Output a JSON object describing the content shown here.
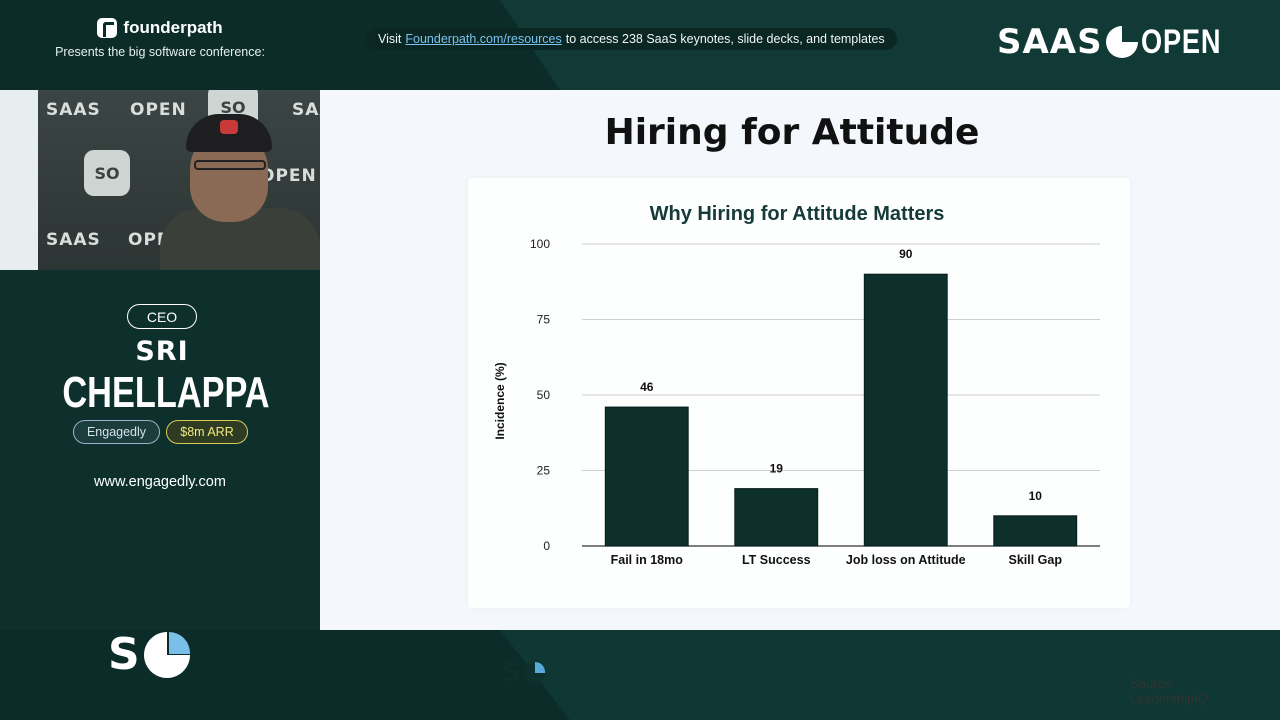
{
  "header": {
    "brand_name": "founderpath",
    "brand_subtitle": "Presents the big software conference:",
    "banner_prefix": "Visit",
    "banner_link": "Founderpath.com/resources",
    "banner_suffix": "to access 238 SaaS keynotes, slide decks, and templates",
    "event_logo_left": "SAAS",
    "event_logo_right": "OPEN"
  },
  "video": {
    "backdrop_left": "SAAS",
    "backdrop_right": "OPEN",
    "backdrop_tile": "SO"
  },
  "speaker": {
    "role": "CEO",
    "first_name": "SRI",
    "last_name": "CHELLAPPA",
    "company": "Engagedly",
    "arr": "$8m ARR",
    "website": "www.engagedly.com"
  },
  "footer": {
    "logo_letter": "S"
  },
  "slide": {
    "title": "Hiring for Attitude",
    "logo_letter": "S",
    "source": "Source: LeadershipIQ"
  },
  "chart_data": {
    "type": "bar",
    "title": "Why Hiring for Attitude Matters",
    "xlabel": "",
    "ylabel": "Incidence (%)",
    "categories": [
      "Fail in 18mo",
      "LT Success",
      "Job loss on Attitude",
      "Skill Gap"
    ],
    "values": [
      46,
      19,
      90,
      10
    ],
    "ylim": [
      0,
      100
    ],
    "yticks": [
      0,
      25,
      50,
      75,
      100
    ],
    "grid": true,
    "bar_color": "#0d302d"
  },
  "colors": {
    "dark_green": "#0d302d",
    "accent_blue": "#79bfe8",
    "link_blue": "#7bc2ee",
    "arr_yellow": "#f3e77d"
  }
}
